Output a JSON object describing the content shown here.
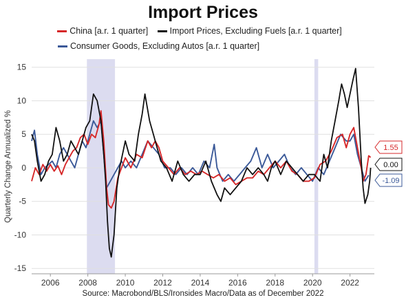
{
  "title": "Import Prices",
  "source": "Source: Macrobond/BLS/Ironsides Macro/Data as of December 2022",
  "chart_data": {
    "type": "line",
    "title": "Import Prices",
    "ylabel": "Quarterly Change Annualized %",
    "xlabel": "",
    "xlim": [
      2005.0,
      2023.3
    ],
    "ylim": [
      -15.8,
      16.2
    ],
    "x_ticks": [
      2006,
      2008,
      2010,
      2012,
      2014,
      2016,
      2018,
      2020,
      2022
    ],
    "y_ticks": [
      15,
      10,
      5,
      0,
      -5,
      -10,
      -15
    ],
    "grid": true,
    "legend_position": "top",
    "recessions": [
      [
        2007.95,
        2009.45
      ],
      [
        2020.1,
        2020.3
      ]
    ],
    "end_labels": [
      {
        "text": "1.55",
        "color": "#d62728",
        "value": 1.55
      },
      {
        "text": "0.00",
        "color": "#111111",
        "value": 0.0
      },
      {
        "text": "-1.09",
        "color": "#3b5998",
        "value": -1.09
      }
    ],
    "series": [
      {
        "name": "China [a.r. 1 quarter]",
        "color": "#d62728",
        "points": [
          [
            2005.0,
            -2
          ],
          [
            2005.2,
            0
          ],
          [
            2005.4,
            -1
          ],
          [
            2005.6,
            0.5
          ],
          [
            2005.8,
            -0.5
          ],
          [
            2006.0,
            0.5
          ],
          [
            2006.2,
            -0.5
          ],
          [
            2006.4,
            0.3
          ],
          [
            2006.6,
            -1
          ],
          [
            2006.8,
            0.5
          ],
          [
            2007.0,
            1.5
          ],
          [
            2007.2,
            2.5
          ],
          [
            2007.4,
            3
          ],
          [
            2007.6,
            4.5
          ],
          [
            2007.8,
            5
          ],
          [
            2008.0,
            3.5
          ],
          [
            2008.2,
            5
          ],
          [
            2008.4,
            4.5
          ],
          [
            2008.6,
            6.5
          ],
          [
            2008.7,
            8.5
          ],
          [
            2008.85,
            4
          ],
          [
            2009.0,
            -3
          ],
          [
            2009.1,
            -5.5
          ],
          [
            2009.25,
            -6
          ],
          [
            2009.4,
            -5
          ],
          [
            2009.6,
            -1.5
          ],
          [
            2009.8,
            0
          ],
          [
            2010.0,
            1.5
          ],
          [
            2010.3,
            0
          ],
          [
            2010.6,
            2
          ],
          [
            2010.9,
            1.5
          ],
          [
            2011.2,
            4
          ],
          [
            2011.4,
            3
          ],
          [
            2011.6,
            4
          ],
          [
            2011.8,
            3
          ],
          [
            2012.0,
            1
          ],
          [
            2012.3,
            0
          ],
          [
            2012.6,
            -1
          ],
          [
            2012.9,
            0
          ],
          [
            2013.2,
            -1
          ],
          [
            2013.5,
            -0.5
          ],
          [
            2013.8,
            -1
          ],
          [
            2014.1,
            -0.5
          ],
          [
            2014.4,
            -1
          ],
          [
            2014.7,
            -1.5
          ],
          [
            2015.0,
            -1
          ],
          [
            2015.3,
            -2
          ],
          [
            2015.6,
            -1.5
          ],
          [
            2015.9,
            -2.5
          ],
          [
            2016.2,
            -2
          ],
          [
            2016.5,
            -1.5
          ],
          [
            2016.8,
            -1.5
          ],
          [
            2017.1,
            -0.5
          ],
          [
            2017.4,
            -1
          ],
          [
            2017.7,
            0
          ],
          [
            2018.0,
            1
          ],
          [
            2018.3,
            0
          ],
          [
            2018.6,
            1
          ],
          [
            2018.9,
            -0.5
          ],
          [
            2019.2,
            -1
          ],
          [
            2019.5,
            -2
          ],
          [
            2019.8,
            -2
          ],
          [
            2020.1,
            -1.5
          ],
          [
            2020.4,
            0.5
          ],
          [
            2020.7,
            1
          ],
          [
            2021.0,
            2.5
          ],
          [
            2021.3,
            4.5
          ],
          [
            2021.6,
            5
          ],
          [
            2021.8,
            3
          ],
          [
            2022.0,
            5
          ],
          [
            2022.2,
            6
          ],
          [
            2022.4,
            3
          ],
          [
            2022.6,
            0
          ],
          [
            2022.7,
            -2
          ],
          [
            2022.85,
            -1
          ],
          [
            2023.0,
            1.8
          ],
          [
            2023.1,
            1.55
          ]
        ]
      },
      {
        "name": "Import Prices, Excluding Fuels [a.r. 1 quarter]",
        "color": "#111111",
        "points": [
          [
            2005.0,
            5
          ],
          [
            2005.15,
            4
          ],
          [
            2005.3,
            1
          ],
          [
            2005.5,
            -2
          ],
          [
            2005.7,
            -1
          ],
          [
            2005.9,
            1
          ],
          [
            2006.1,
            2
          ],
          [
            2006.3,
            6
          ],
          [
            2006.5,
            4
          ],
          [
            2006.7,
            1
          ],
          [
            2006.9,
            2
          ],
          [
            2007.1,
            4
          ],
          [
            2007.3,
            3
          ],
          [
            2007.5,
            2
          ],
          [
            2007.7,
            4
          ],
          [
            2007.9,
            6
          ],
          [
            2008.1,
            7
          ],
          [
            2008.3,
            11
          ],
          [
            2008.5,
            10
          ],
          [
            2008.7,
            7
          ],
          [
            2008.85,
            2
          ],
          [
            2008.95,
            -2
          ],
          [
            2009.05,
            -8
          ],
          [
            2009.15,
            -12
          ],
          [
            2009.25,
            -13.3
          ],
          [
            2009.4,
            -10
          ],
          [
            2009.55,
            -3
          ],
          [
            2009.7,
            0
          ],
          [
            2009.85,
            2
          ],
          [
            2010.0,
            4
          ],
          [
            2010.2,
            2
          ],
          [
            2010.5,
            1
          ],
          [
            2010.7,
            5
          ],
          [
            2010.9,
            8
          ],
          [
            2011.05,
            11
          ],
          [
            2011.3,
            7
          ],
          [
            2011.5,
            5
          ],
          [
            2011.7,
            3
          ],
          [
            2011.9,
            1
          ],
          [
            2012.2,
            0
          ],
          [
            2012.5,
            -2
          ],
          [
            2012.8,
            1
          ],
          [
            2013.1,
            -1
          ],
          [
            2013.4,
            -2
          ],
          [
            2013.7,
            -1
          ],
          [
            2014.0,
            -1
          ],
          [
            2014.3,
            1
          ],
          [
            2014.6,
            -2
          ],
          [
            2014.9,
            -4
          ],
          [
            2015.1,
            -5
          ],
          [
            2015.3,
            -3
          ],
          [
            2015.6,
            -4
          ],
          [
            2015.9,
            -3
          ],
          [
            2016.2,
            -2
          ],
          [
            2016.5,
            0
          ],
          [
            2016.8,
            -1
          ],
          [
            2017.1,
            0
          ],
          [
            2017.4,
            -1
          ],
          [
            2017.6,
            -2
          ],
          [
            2017.8,
            0
          ],
          [
            2018.0,
            1
          ],
          [
            2018.3,
            -1
          ],
          [
            2018.6,
            1
          ],
          [
            2018.9,
            0
          ],
          [
            2019.2,
            -1
          ],
          [
            2019.5,
            -2
          ],
          [
            2019.8,
            -1
          ],
          [
            2020.1,
            -1
          ],
          [
            2020.4,
            -2
          ],
          [
            2020.6,
            2
          ],
          [
            2020.8,
            0
          ],
          [
            2021.0,
            4
          ],
          [
            2021.2,
            7
          ],
          [
            2021.4,
            10
          ],
          [
            2021.55,
            12.5
          ],
          [
            2021.7,
            11
          ],
          [
            2021.85,
            9
          ],
          [
            2022.0,
            11
          ],
          [
            2022.15,
            13
          ],
          [
            2022.3,
            14.8
          ],
          [
            2022.45,
            9
          ],
          [
            2022.6,
            1
          ],
          [
            2022.7,
            -3
          ],
          [
            2022.8,
            -5.3
          ],
          [
            2022.95,
            -4
          ],
          [
            2023.05,
            -2
          ],
          [
            2023.1,
            0
          ]
        ]
      },
      {
        "name": "Consumer Goods, Excluding Autos [a.r. 1 quarter]",
        "color": "#3b5998",
        "points": [
          [
            2005.0,
            4
          ],
          [
            2005.15,
            5.6
          ],
          [
            2005.3,
            2
          ],
          [
            2005.5,
            -1
          ],
          [
            2005.7,
            0
          ],
          [
            2005.9,
            0.5
          ],
          [
            2006.1,
            1
          ],
          [
            2006.3,
            0
          ],
          [
            2006.5,
            2
          ],
          [
            2006.7,
            3
          ],
          [
            2006.9,
            2
          ],
          [
            2007.1,
            1
          ],
          [
            2007.3,
            0
          ],
          [
            2007.5,
            2
          ],
          [
            2007.7,
            4
          ],
          [
            2007.9,
            3
          ],
          [
            2008.1,
            5
          ],
          [
            2008.3,
            7
          ],
          [
            2008.5,
            6
          ],
          [
            2008.7,
            7
          ],
          [
            2008.85,
            2
          ],
          [
            2009.0,
            -3
          ],
          [
            2009.2,
            -2
          ],
          [
            2009.4,
            -1
          ],
          [
            2009.6,
            0
          ],
          [
            2009.8,
            1
          ],
          [
            2010.0,
            0
          ],
          [
            2010.3,
            1
          ],
          [
            2010.6,
            0
          ],
          [
            2010.9,
            2
          ],
          [
            2011.2,
            4
          ],
          [
            2011.5,
            3
          ],
          [
            2011.8,
            2
          ],
          [
            2012.1,
            0
          ],
          [
            2012.4,
            0
          ],
          [
            2012.7,
            -1
          ],
          [
            2013.0,
            0
          ],
          [
            2013.3,
            -1
          ],
          [
            2013.6,
            0
          ],
          [
            2013.9,
            -1
          ],
          [
            2014.2,
            1
          ],
          [
            2014.5,
            0
          ],
          [
            2014.75,
            3.5
          ],
          [
            2014.9,
            0
          ],
          [
            2015.2,
            -2
          ],
          [
            2015.5,
            -1
          ],
          [
            2015.8,
            -2
          ],
          [
            2016.1,
            -1
          ],
          [
            2016.4,
            0
          ],
          [
            2016.7,
            1
          ],
          [
            2017.0,
            3
          ],
          [
            2017.3,
            0
          ],
          [
            2017.6,
            2
          ],
          [
            2017.9,
            0
          ],
          [
            2018.2,
            1
          ],
          [
            2018.5,
            2
          ],
          [
            2018.8,
            0
          ],
          [
            2019.1,
            -1
          ],
          [
            2019.4,
            0
          ],
          [
            2019.7,
            -1
          ],
          [
            2020.0,
            -2
          ],
          [
            2020.3,
            0
          ],
          [
            2020.6,
            -1
          ],
          [
            2020.9,
            1
          ],
          [
            2021.2,
            3
          ],
          [
            2021.5,
            5
          ],
          [
            2021.8,
            4
          ],
          [
            2022.0,
            4
          ],
          [
            2022.2,
            5
          ],
          [
            2022.4,
            2
          ],
          [
            2022.6,
            0
          ],
          [
            2022.8,
            -2
          ],
          [
            2023.0,
            -1.09
          ]
        ]
      }
    ]
  }
}
